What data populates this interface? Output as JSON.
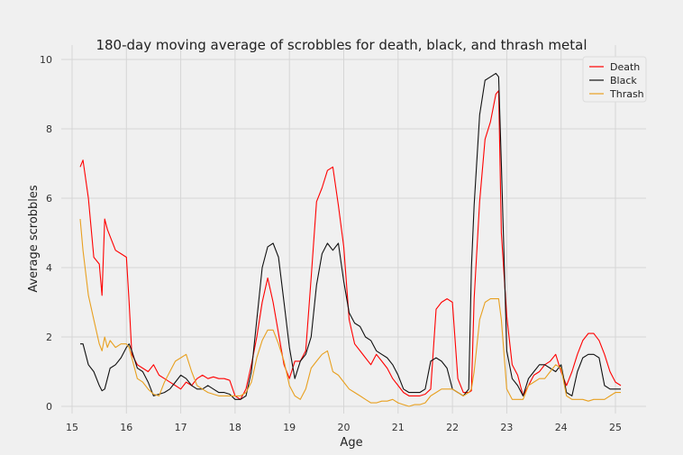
{
  "chart_data": {
    "type": "line",
    "title": "180-day moving average of scrobbles for death, black, and thrash metal",
    "xlabel": "Age",
    "ylabel": "Average scrobbles",
    "xlim": [
      14.85,
      25.6
    ],
    "ylim": [
      -0.2,
      10.15
    ],
    "xticks": [
      15,
      16,
      17,
      18,
      19,
      20,
      21,
      22,
      23,
      24,
      25
    ],
    "yticks": [
      0,
      2,
      4,
      6,
      8,
      10
    ],
    "grid": true,
    "legend_position": "top-right",
    "x": [
      15.15,
      15.2,
      15.3,
      15.4,
      15.5,
      15.55,
      15.6,
      15.65,
      15.7,
      15.8,
      15.9,
      16.0,
      16.05,
      16.1,
      16.2,
      16.3,
      16.4,
      16.5,
      16.6,
      16.7,
      16.8,
      16.9,
      17.0,
      17.1,
      17.2,
      17.3,
      17.4,
      17.5,
      17.6,
      17.7,
      17.8,
      17.9,
      18.0,
      18.1,
      18.2,
      18.3,
      18.4,
      18.5,
      18.6,
      18.7,
      18.8,
      18.9,
      19.0,
      19.1,
      19.2,
      19.3,
      19.4,
      19.5,
      19.6,
      19.7,
      19.8,
      19.9,
      20.0,
      20.1,
      20.2,
      20.3,
      20.4,
      20.5,
      20.6,
      20.7,
      20.8,
      20.9,
      21.0,
      21.1,
      21.2,
      21.3,
      21.4,
      21.5,
      21.6,
      21.7,
      21.8,
      21.9,
      22.0,
      22.1,
      22.2,
      22.3,
      22.35,
      22.4,
      22.5,
      22.6,
      22.7,
      22.8,
      22.85,
      22.9,
      23.0,
      23.1,
      23.2,
      23.3,
      23.4,
      23.5,
      23.6,
      23.7,
      23.8,
      23.9,
      24.0,
      24.1,
      24.2,
      24.3,
      24.4,
      24.5,
      24.6,
      24.7,
      24.8,
      24.9,
      25.0,
      25.1
    ],
    "series": [
      {
        "name": "Death",
        "color": "#ff0000",
        "values": [
          6.9,
          7.1,
          6.0,
          4.3,
          4.1,
          3.2,
          5.4,
          5.1,
          4.9,
          4.5,
          4.4,
          4.3,
          3.0,
          1.5,
          1.2,
          1.1,
          1.0,
          1.2,
          0.9,
          0.8,
          0.7,
          0.6,
          0.5,
          0.7,
          0.6,
          0.8,
          0.9,
          0.8,
          0.85,
          0.8,
          0.8,
          0.75,
          0.3,
          0.2,
          0.5,
          1.2,
          2.0,
          3.0,
          3.7,
          3.0,
          2.1,
          1.2,
          0.8,
          1.3,
          1.3,
          1.6,
          3.7,
          5.9,
          6.3,
          6.8,
          6.9,
          5.8,
          4.6,
          2.5,
          1.8,
          1.6,
          1.4,
          1.2,
          1.5,
          1.3,
          1.1,
          0.8,
          0.6,
          0.4,
          0.3,
          0.3,
          0.3,
          0.35,
          0.5,
          2.8,
          3.0,
          3.1,
          3.0,
          0.8,
          0.4,
          0.4,
          0.45,
          3.1,
          5.9,
          7.7,
          8.2,
          9.0,
          9.1,
          5.0,
          2.6,
          1.2,
          0.9,
          0.3,
          0.6,
          0.9,
          1.0,
          1.2,
          1.3,
          1.5,
          1.0,
          0.6,
          1.0,
          1.5,
          1.9,
          2.1,
          2.1,
          1.9,
          1.5,
          1.0,
          0.7,
          0.6
        ]
      },
      {
        "name": "Black",
        "color": "#111111",
        "values": [
          1.8,
          1.8,
          1.2,
          1.0,
          0.6,
          0.45,
          0.5,
          0.8,
          1.1,
          1.2,
          1.4,
          1.7,
          1.8,
          1.6,
          1.1,
          1.0,
          0.7,
          0.3,
          0.35,
          0.4,
          0.5,
          0.7,
          0.9,
          0.8,
          0.6,
          0.5,
          0.5,
          0.6,
          0.5,
          0.4,
          0.4,
          0.35,
          0.2,
          0.2,
          0.3,
          1.0,
          2.5,
          4.0,
          4.6,
          4.7,
          4.3,
          3.0,
          1.7,
          0.8,
          1.3,
          1.5,
          2.0,
          3.5,
          4.4,
          4.7,
          4.5,
          4.7,
          3.6,
          2.7,
          2.4,
          2.3,
          2.0,
          1.9,
          1.6,
          1.5,
          1.4,
          1.2,
          0.9,
          0.5,
          0.4,
          0.4,
          0.4,
          0.5,
          1.3,
          1.4,
          1.3,
          1.1,
          0.5,
          0.4,
          0.3,
          0.5,
          4.0,
          5.8,
          8.4,
          9.4,
          9.5,
          9.6,
          9.5,
          7.0,
          1.6,
          0.8,
          0.6,
          0.3,
          0.8,
          1.0,
          1.2,
          1.2,
          1.1,
          1.0,
          1.2,
          0.4,
          0.3,
          1.0,
          1.4,
          1.5,
          1.5,
          1.4,
          0.6,
          0.5,
          0.5,
          0.5
        ]
      },
      {
        "name": "Thrash",
        "color": "#e8a020",
        "values": [
          5.4,
          4.5,
          3.2,
          2.5,
          1.8,
          1.6,
          2.0,
          1.7,
          1.9,
          1.7,
          1.8,
          1.8,
          1.7,
          1.4,
          0.8,
          0.7,
          0.5,
          0.35,
          0.3,
          0.7,
          1.0,
          1.3,
          1.4,
          1.5,
          1.0,
          0.6,
          0.5,
          0.4,
          0.35,
          0.3,
          0.3,
          0.3,
          0.3,
          0.3,
          0.4,
          0.7,
          1.4,
          1.9,
          2.2,
          2.2,
          1.8,
          1.3,
          0.6,
          0.3,
          0.2,
          0.5,
          1.1,
          1.3,
          1.5,
          1.6,
          1.0,
          0.9,
          0.7,
          0.5,
          0.4,
          0.3,
          0.2,
          0.1,
          0.1,
          0.15,
          0.15,
          0.2,
          0.1,
          0.05,
          0.0,
          0.05,
          0.05,
          0.1,
          0.3,
          0.4,
          0.5,
          0.5,
          0.5,
          0.4,
          0.3,
          0.4,
          0.5,
          1.0,
          2.5,
          3.0,
          3.1,
          3.1,
          3.1,
          2.5,
          0.5,
          0.2,
          0.2,
          0.2,
          0.6,
          0.7,
          0.8,
          0.8,
          1.0,
          1.2,
          1.1,
          0.3,
          0.2,
          0.2,
          0.2,
          0.15,
          0.2,
          0.2,
          0.2,
          0.3,
          0.4,
          0.4
        ]
      }
    ]
  }
}
